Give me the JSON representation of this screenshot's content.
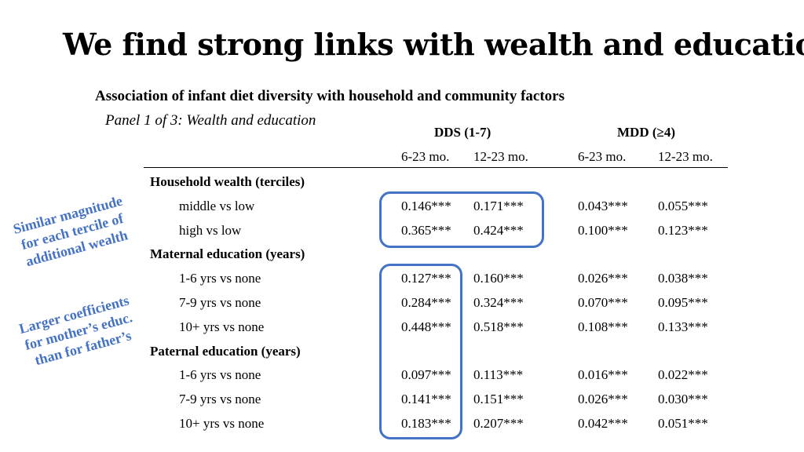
{
  "title": "We find strong links with wealth and education",
  "subtitle": "Association of infant diet diversity with household and community factors",
  "panel": "Panel 1 of 3: Wealth and education",
  "groups": {
    "dds": "DDS (1-7)",
    "mdd": "MDD (≥4)"
  },
  "columns": [
    "6-23 mo.",
    "12-23 mo.",
    "6-23 mo.",
    "12-23 mo."
  ],
  "rows": [
    {
      "type": "section",
      "label": "Household wealth (terciles)"
    },
    {
      "type": "item",
      "label": "middle vs low",
      "values": [
        "0.146***",
        "0.171***",
        "0.043***",
        "0.055***"
      ]
    },
    {
      "type": "item",
      "label": "high vs low",
      "values": [
        "0.365***",
        "0.424***",
        "0.100***",
        "0.123***"
      ]
    },
    {
      "type": "section",
      "label": "Maternal education (years)"
    },
    {
      "type": "item",
      "label": "1-6 yrs vs none",
      "values": [
        "0.127***",
        "0.160***",
        "0.026***",
        "0.038***"
      ]
    },
    {
      "type": "item",
      "label": "7-9 yrs vs none",
      "values": [
        "0.284***",
        "0.324***",
        "0.070***",
        "0.095***"
      ]
    },
    {
      "type": "item",
      "label": "10+ yrs vs none",
      "values": [
        "0.448***",
        "0.518***",
        "0.108***",
        "0.133***"
      ]
    },
    {
      "type": "section",
      "label": "Paternal education (years)"
    },
    {
      "type": "item",
      "label": "1-6 yrs vs none",
      "values": [
        "0.097***",
        "0.113***",
        "0.016***",
        "0.022***"
      ]
    },
    {
      "type": "item",
      "label": "7-9 yrs vs none",
      "values": [
        "0.141***",
        "0.151***",
        "0.026***",
        "0.030***"
      ]
    },
    {
      "type": "item",
      "label": "10+ yrs vs none",
      "values": [
        "0.183***",
        "0.207***",
        "0.042***",
        "0.051***"
      ]
    }
  ],
  "annotations": {
    "wealth": [
      "Similar magnitude",
      "for each tercile of",
      "additional wealth"
    ],
    "education": [
      "Larger coefficients",
      "for mother’s educ.",
      "than for father’s"
    ]
  },
  "colors": {
    "accent": "#4472C4",
    "text": "#000000",
    "background": "#FFFFFF"
  }
}
